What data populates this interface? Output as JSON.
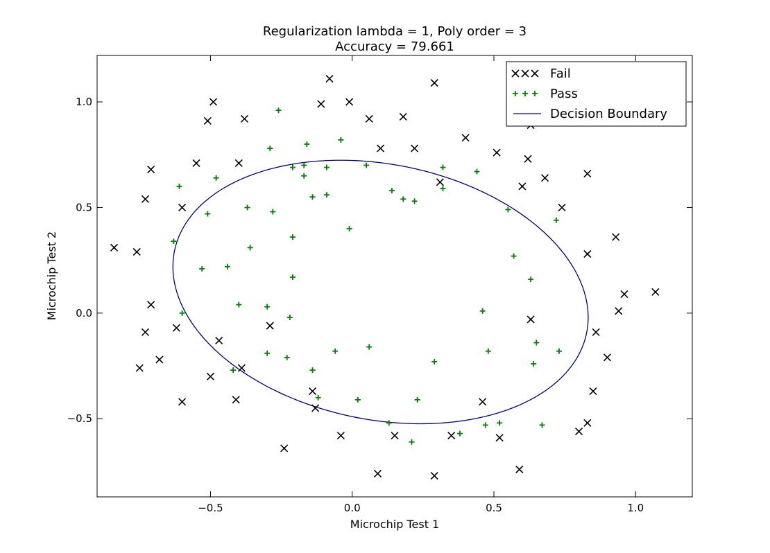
{
  "chart_data": {
    "type": "scatter",
    "title": "Regularization lambda = 1, Poly order = 3",
    "subtitle": "Accuracy = 79.661",
    "xlabel": "Microchip Test 1",
    "ylabel": "Microchip Test 2",
    "xlim": [
      -0.9,
      1.2
    ],
    "ylim": [
      -0.87,
      1.22
    ],
    "xticks": [
      -0.5,
      0.0,
      0.5,
      1.0
    ],
    "xtick_labels": [
      "−0.5",
      "0.0",
      "0.5",
      "1.0"
    ],
    "yticks": [
      -0.5,
      0.0,
      0.5,
      1.0
    ],
    "ytick_labels": [
      "−0.5",
      "0.0",
      "0.5",
      "1.0"
    ],
    "grid": false,
    "legend_position": "top-right",
    "series": [
      {
        "name": "Fail",
        "marker": "x",
        "color": "#000000",
        "points": [
          [
            -0.84,
            0.31
          ],
          [
            -0.76,
            0.29
          ],
          [
            -0.73,
            0.54
          ],
          [
            -0.71,
            0.68
          ],
          [
            -0.73,
            -0.09
          ],
          [
            -0.71,
            0.04
          ],
          [
            -0.75,
            -0.26
          ],
          [
            -0.68,
            -0.22
          ],
          [
            -0.62,
            -0.07
          ],
          [
            -0.6,
            -0.42
          ],
          [
            -0.6,
            0.5
          ],
          [
            -0.55,
            0.71
          ],
          [
            -0.51,
            0.91
          ],
          [
            -0.49,
            1.0
          ],
          [
            -0.5,
            -0.3
          ],
          [
            -0.47,
            -0.13
          ],
          [
            -0.41,
            -0.41
          ],
          [
            -0.4,
            0.71
          ],
          [
            -0.38,
            0.92
          ],
          [
            -0.39,
            -0.26
          ],
          [
            -0.29,
            -0.06
          ],
          [
            -0.24,
            -0.64
          ],
          [
            -0.14,
            -0.37
          ],
          [
            -0.13,
            -0.45
          ],
          [
            -0.11,
            0.99
          ],
          [
            -0.08,
            1.11
          ],
          [
            -0.04,
            -0.58
          ],
          [
            -0.01,
            1.0
          ],
          [
            0.06,
            0.92
          ],
          [
            0.09,
            -0.76
          ],
          [
            0.1,
            0.78
          ],
          [
            0.15,
            -0.58
          ],
          [
            0.18,
            0.93
          ],
          [
            0.22,
            0.78
          ],
          [
            0.29,
            1.09
          ],
          [
            0.29,
            -0.77
          ],
          [
            0.31,
            0.62
          ],
          [
            0.35,
            -0.58
          ],
          [
            0.4,
            0.83
          ],
          [
            0.46,
            -0.42
          ],
          [
            0.51,
            0.76
          ],
          [
            0.52,
            -0.59
          ],
          [
            0.59,
            -0.74
          ],
          [
            0.6,
            0.6
          ],
          [
            0.62,
            0.73
          ],
          [
            0.63,
            -0.03
          ],
          [
            0.63,
            0.89
          ],
          [
            0.68,
            0.64
          ],
          [
            0.74,
            0.5
          ],
          [
            0.8,
            -0.56
          ],
          [
            0.83,
            0.66
          ],
          [
            0.83,
            0.28
          ],
          [
            0.83,
            -0.52
          ],
          [
            0.85,
            -0.37
          ],
          [
            0.86,
            -0.09
          ],
          [
            0.9,
            -0.21
          ],
          [
            0.93,
            0.36
          ],
          [
            0.94,
            0.01
          ],
          [
            0.96,
            0.09
          ],
          [
            1.07,
            0.1
          ]
        ]
      },
      {
        "name": "Pass",
        "marker": "+",
        "color": "#008000",
        "points": [
          [
            -0.63,
            0.34
          ],
          [
            -0.61,
            0.6
          ],
          [
            -0.6,
            0.0
          ],
          [
            -0.53,
            0.21
          ],
          [
            -0.51,
            0.47
          ],
          [
            -0.48,
            0.64
          ],
          [
            -0.44,
            0.22
          ],
          [
            -0.42,
            -0.27
          ],
          [
            -0.4,
            0.04
          ],
          [
            -0.37,
            0.5
          ],
          [
            -0.36,
            0.31
          ],
          [
            -0.3,
            -0.19
          ],
          [
            -0.3,
            0.03
          ],
          [
            -0.29,
            0.78
          ],
          [
            -0.28,
            0.48
          ],
          [
            -0.26,
            0.96
          ],
          [
            -0.23,
            -0.21
          ],
          [
            -0.22,
            -0.02
          ],
          [
            -0.21,
            0.36
          ],
          [
            -0.21,
            0.17
          ],
          [
            -0.21,
            0.69
          ],
          [
            -0.17,
            0.7
          ],
          [
            -0.17,
            0.65
          ],
          [
            -0.16,
            0.8
          ],
          [
            -0.14,
            0.55
          ],
          [
            -0.14,
            -0.27
          ],
          [
            -0.12,
            -0.4
          ],
          [
            -0.09,
            0.56
          ],
          [
            -0.09,
            0.69
          ],
          [
            -0.06,
            -0.18
          ],
          [
            -0.04,
            0.82
          ],
          [
            -0.01,
            0.4
          ],
          [
            0.02,
            -0.41
          ],
          [
            0.05,
            0.7
          ],
          [
            0.06,
            -0.16
          ],
          [
            0.13,
            -0.52
          ],
          [
            0.14,
            0.58
          ],
          [
            0.18,
            0.54
          ],
          [
            0.21,
            -0.61
          ],
          [
            0.22,
            0.53
          ],
          [
            0.23,
            -0.41
          ],
          [
            0.29,
            -0.23
          ],
          [
            0.32,
            0.69
          ],
          [
            0.32,
            0.59
          ],
          [
            0.38,
            -0.57
          ],
          [
            0.44,
            0.67
          ],
          [
            0.46,
            0.01
          ],
          [
            0.47,
            -0.53
          ],
          [
            0.48,
            -0.18
          ],
          [
            0.52,
            -0.52
          ],
          [
            0.55,
            0.49
          ],
          [
            0.57,
            0.27
          ],
          [
            0.63,
            0.16
          ],
          [
            0.64,
            -0.24
          ],
          [
            0.65,
            -0.14
          ],
          [
            0.67,
            -0.53
          ],
          [
            0.72,
            0.44
          ],
          [
            0.73,
            -0.18
          ]
        ]
      }
    ],
    "decision_boundary": {
      "name": "Decision Boundary",
      "color": "#00007f",
      "center": [
        0.1,
        0.1
      ],
      "semi_axis_major": 0.76,
      "semi_axis_minor": 0.59,
      "rotation_deg": -25
    }
  }
}
